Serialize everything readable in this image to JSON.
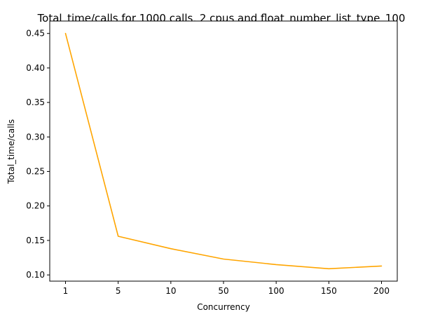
{
  "chart_data": {
    "type": "line",
    "title": "Total_time/calls for 1000 calls, 2 cpus and float_number_list_type_100",
    "xlabel": "Concurrency",
    "ylabel": "Total_time/calls",
    "categories": [
      "1",
      "5",
      "10",
      "50",
      "100",
      "150",
      "200"
    ],
    "series": [
      {
        "values": [
          0.45,
          0.156,
          0.138,
          0.123,
          0.115,
          0.109,
          0.113
        ],
        "color": "#ffa500"
      }
    ],
    "ylim": [
      0.091,
      0.468
    ],
    "yticks": [
      0.1,
      0.15,
      0.2,
      0.25,
      0.3,
      0.35,
      0.4,
      0.45
    ],
    "ytick_labels": [
      "0.10",
      "0.15",
      "0.20",
      "0.25",
      "0.30",
      "0.35",
      "0.40",
      "0.45"
    ],
    "grid": false,
    "legend": false
  }
}
